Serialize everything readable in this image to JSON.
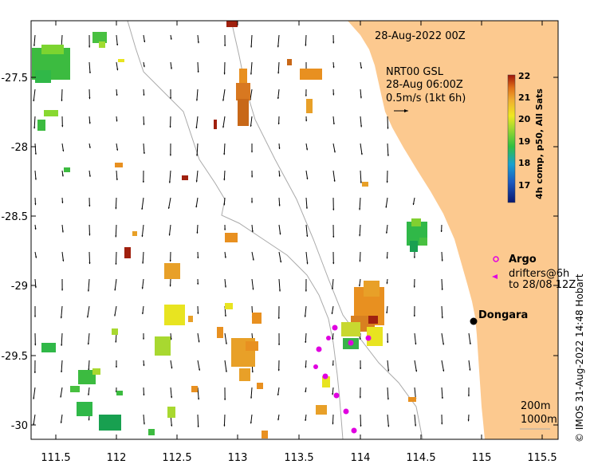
{
  "title_date": "28-Aug-2022 00Z",
  "current_info": {
    "line1": "NRT00 GSL",
    "line2": "28-Aug 06:00Z",
    "line3": "0.5m/s (1kt 6h)"
  },
  "legend": {
    "argo_label": "Argo",
    "drifters_line1": "drifters@6h",
    "drifters_line2": "to 28/08 12Z"
  },
  "place_label": "Dongara",
  "contours": {
    "label1": "200m",
    "label2": "1000m"
  },
  "colorbar": {
    "title": "4h comp, p50, All Sats",
    "ticks": [
      "22",
      "21",
      "20",
      "19",
      "18",
      "17"
    ]
  },
  "credit": "© IMOS 31-Aug-2022 14:48 Hobart",
  "axes": {
    "x_ticks": [
      "111.5",
      "112",
      "112.5",
      "113",
      "113.5",
      "114",
      "114.5",
      "115",
      "115.5"
    ],
    "y_ticks": [
      "-27.5",
      "-28",
      "-28.5",
      "-29",
      "-29.5",
      "-30"
    ]
  },
  "colors": {
    "land": "#fcc98f",
    "sst_low": "#1e2a9c",
    "sst_mid": "#38b34a",
    "sst_warm": "#e8e420",
    "sst_hot": "#e89020",
    "sst_max": "#a0200e",
    "argo": "#e000e0"
  }
}
